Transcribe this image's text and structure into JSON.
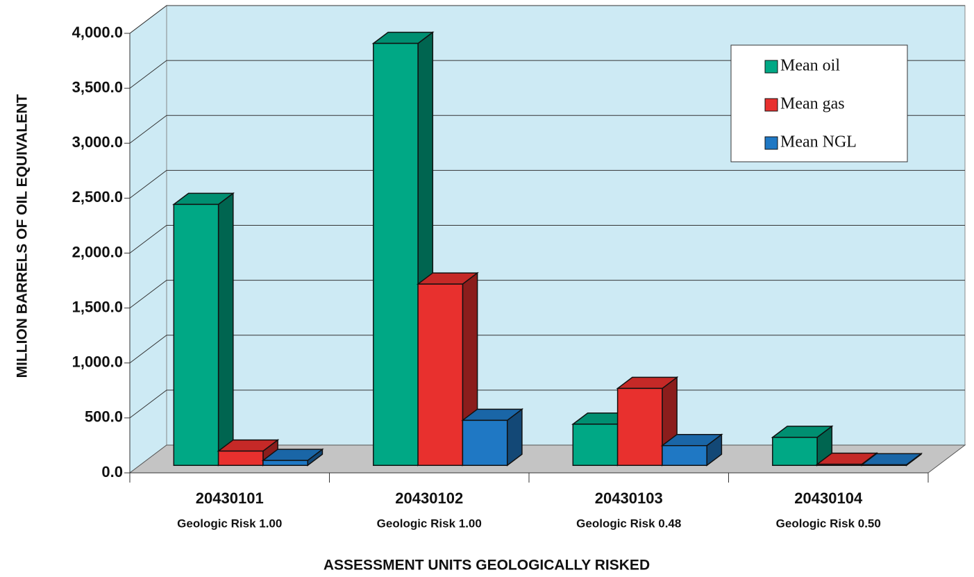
{
  "chart_data": {
    "type": "bar3d",
    "categories": [
      "20430101",
      "20430102",
      "20430103",
      "20430104"
    ],
    "category_notes": [
      "Geologic Risk 1.00",
      "Geologic Risk 1.00",
      "Geologic Risk 0.48",
      "Geologic Risk 0.50"
    ],
    "series": [
      {
        "name": "Mean oil",
        "color": "#00a885",
        "values": [
          2375,
          3840,
          375,
          255
        ]
      },
      {
        "name": "Mean gas",
        "color": "#e8302e",
        "values": [
          130,
          1650,
          700,
          10
        ]
      },
      {
        "name": "Mean NGL",
        "color": "#1f78c4",
        "values": [
          45,
          410,
          180,
          5
        ]
      }
    ],
    "ylim": [
      0,
      4000
    ],
    "yticks": [
      {
        "value": 0,
        "label": "0.0"
      },
      {
        "value": 500,
        "label": "500.0"
      },
      {
        "value": 1000,
        "label": "1,000.0"
      },
      {
        "value": 1500,
        "label": "1,500.0"
      },
      {
        "value": 2000,
        "label": "2,000.0"
      },
      {
        "value": 2500,
        "label": "2,500.0"
      },
      {
        "value": 3000,
        "label": "3,000.0"
      },
      {
        "value": 3500,
        "label": "3,500.0"
      },
      {
        "value": 4000,
        "label": "4,000.0"
      }
    ],
    "y_label": "MILLION BARRELS OF OIL EQUIVALENT",
    "x_label": "ASSESSMENT UNITS GEOLOGICALLY RISKED",
    "grid": true,
    "legend": "upper right"
  }
}
